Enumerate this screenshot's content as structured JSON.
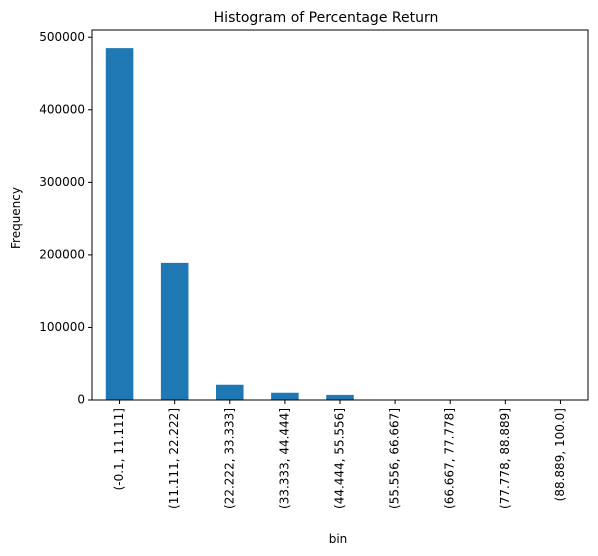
{
  "chart_data": {
    "type": "bar",
    "title": "Histogram of Percentage Return",
    "xlabel": "bin",
    "ylabel": "Frequency",
    "categories": [
      "(-0.1, 11.111]",
      "(11.111, 22.222]",
      "(22.222, 33.333]",
      "(33.333, 44.444]",
      "(44.444, 55.556]",
      "(55.556, 66.667]",
      "(66.667, 77.778]",
      "(77.778, 88.889]",
      "(88.889, 100.0]"
    ],
    "values": [
      485000,
      189000,
      21000,
      10000,
      7000,
      500,
      300,
      200,
      300
    ],
    "ylim": [
      0,
      510000
    ],
    "yticks": [
      0,
      100000,
      200000,
      300000,
      400000,
      500000
    ],
    "ytick_labels": [
      "0",
      "100000",
      "200000",
      "300000",
      "400000",
      "500000"
    ],
    "grid": false,
    "bar_color": "#1f77b4"
  }
}
